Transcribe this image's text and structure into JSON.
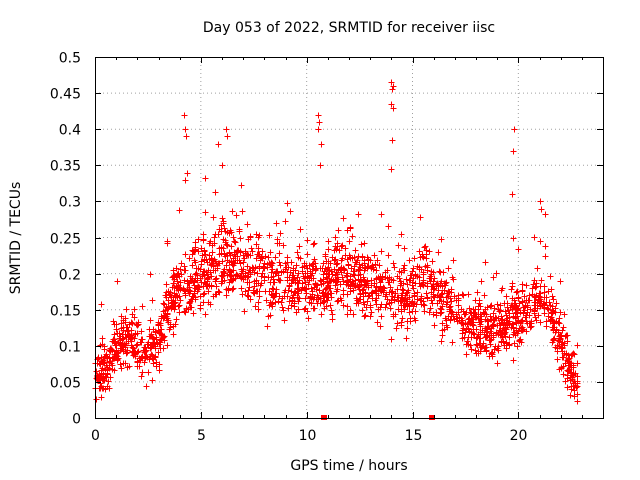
{
  "chart_data": {
    "type": "scatter",
    "title": "Day 053 of 2022, SRMTID for receiver iisc",
    "xlabel": "GPS time / hours",
    "ylabel": "SRMTID / TECUs",
    "xlim": [
      0,
      24
    ],
    "ylim": [
      0,
      0.5
    ],
    "xticks": [
      0,
      5,
      10,
      15,
      20
    ],
    "xtick_labels": [
      "0",
      "5",
      "10",
      "15",
      "20"
    ],
    "yticks": [
      0,
      0.05,
      0.1,
      0.15,
      0.2,
      0.25,
      0.3,
      0.35,
      0.4,
      0.45,
      0.5
    ],
    "ytick_labels": [
      "0",
      "0.05",
      "0.1",
      "0.15",
      "0.2",
      "0.25",
      "0.3",
      "0.35",
      "0.4",
      "0.45",
      "0.5"
    ],
    "grid": true,
    "marker": "plus",
    "color": "#ff0000",
    "series": [
      {
        "name": "SRMTID",
        "envelope": [
          {
            "x": 0.0,
            "y": 0.06
          },
          {
            "x": 0.5,
            "y": 0.07
          },
          {
            "x": 1.0,
            "y": 0.1
          },
          {
            "x": 1.5,
            "y": 0.11
          },
          {
            "x": 2.0,
            "y": 0.1
          },
          {
            "x": 2.5,
            "y": 0.09
          },
          {
            "x": 3.0,
            "y": 0.11
          },
          {
            "x": 3.5,
            "y": 0.16
          },
          {
            "x": 4.0,
            "y": 0.18
          },
          {
            "x": 4.5,
            "y": 0.19
          },
          {
            "x": 5.0,
            "y": 0.2
          },
          {
            "x": 5.5,
            "y": 0.21
          },
          {
            "x": 6.0,
            "y": 0.22
          },
          {
            "x": 6.5,
            "y": 0.22
          },
          {
            "x": 7.0,
            "y": 0.21
          },
          {
            "x": 7.5,
            "y": 0.2
          },
          {
            "x": 8.0,
            "y": 0.2
          },
          {
            "x": 8.5,
            "y": 0.19
          },
          {
            "x": 9.0,
            "y": 0.19
          },
          {
            "x": 9.5,
            "y": 0.19
          },
          {
            "x": 10.0,
            "y": 0.19
          },
          {
            "x": 10.5,
            "y": 0.18
          },
          {
            "x": 11.0,
            "y": 0.19
          },
          {
            "x": 11.5,
            "y": 0.2
          },
          {
            "x": 12.0,
            "y": 0.2
          },
          {
            "x": 12.5,
            "y": 0.19
          },
          {
            "x": 13.0,
            "y": 0.19
          },
          {
            "x": 13.5,
            "y": 0.19
          },
          {
            "x": 14.0,
            "y": 0.18
          },
          {
            "x": 14.5,
            "y": 0.17
          },
          {
            "x": 15.0,
            "y": 0.18
          },
          {
            "x": 15.5,
            "y": 0.19
          },
          {
            "x": 16.0,
            "y": 0.18
          },
          {
            "x": 16.5,
            "y": 0.16
          },
          {
            "x": 17.0,
            "y": 0.15
          },
          {
            "x": 17.5,
            "y": 0.13
          },
          {
            "x": 18.0,
            "y": 0.13
          },
          {
            "x": 18.5,
            "y": 0.12
          },
          {
            "x": 19.0,
            "y": 0.12
          },
          {
            "x": 19.5,
            "y": 0.13
          },
          {
            "x": 20.0,
            "y": 0.14
          },
          {
            "x": 20.5,
            "y": 0.16
          },
          {
            "x": 21.0,
            "y": 0.17
          },
          {
            "x": 21.5,
            "y": 0.15
          },
          {
            "x": 22.0,
            "y": 0.1
          },
          {
            "x": 22.5,
            "y": 0.06
          },
          {
            "x": 22.8,
            "y": 0.05
          }
        ],
        "spread": 0.045,
        "time_range": [
          0.0,
          22.8
        ],
        "sample_count": 2800,
        "outliers": [
          {
            "x": 4.2,
            "y": 0.42
          },
          {
            "x": 4.25,
            "y": 0.4
          },
          {
            "x": 4.3,
            "y": 0.39
          },
          {
            "x": 4.35,
            "y": 0.34
          },
          {
            "x": 4.25,
            "y": 0.33
          },
          {
            "x": 5.8,
            "y": 0.38
          },
          {
            "x": 6.2,
            "y": 0.4
          },
          {
            "x": 6.25,
            "y": 0.39
          },
          {
            "x": 6.0,
            "y": 0.35
          },
          {
            "x": 10.55,
            "y": 0.42
          },
          {
            "x": 10.6,
            "y": 0.41
          },
          {
            "x": 10.55,
            "y": 0.4
          },
          {
            "x": 10.7,
            "y": 0.38
          },
          {
            "x": 10.65,
            "y": 0.35
          },
          {
            "x": 14.0,
            "y": 0.465
          },
          {
            "x": 14.1,
            "y": 0.46
          },
          {
            "x": 14.05,
            "y": 0.455
          },
          {
            "x": 14.0,
            "y": 0.435
          },
          {
            "x": 14.1,
            "y": 0.43
          },
          {
            "x": 14.05,
            "y": 0.385
          },
          {
            "x": 14.0,
            "y": 0.345
          },
          {
            "x": 19.8,
            "y": 0.4
          },
          {
            "x": 19.75,
            "y": 0.37
          },
          {
            "x": 19.7,
            "y": 0.31
          },
          {
            "x": 19.75,
            "y": 0.25
          },
          {
            "x": 21.0,
            "y": 0.3
          },
          {
            "x": 21.05,
            "y": 0.29
          }
        ],
        "zero_markers": [
          {
            "x": 10.8,
            "y": 0
          },
          {
            "x": 15.9,
            "y": 0
          }
        ]
      }
    ]
  }
}
